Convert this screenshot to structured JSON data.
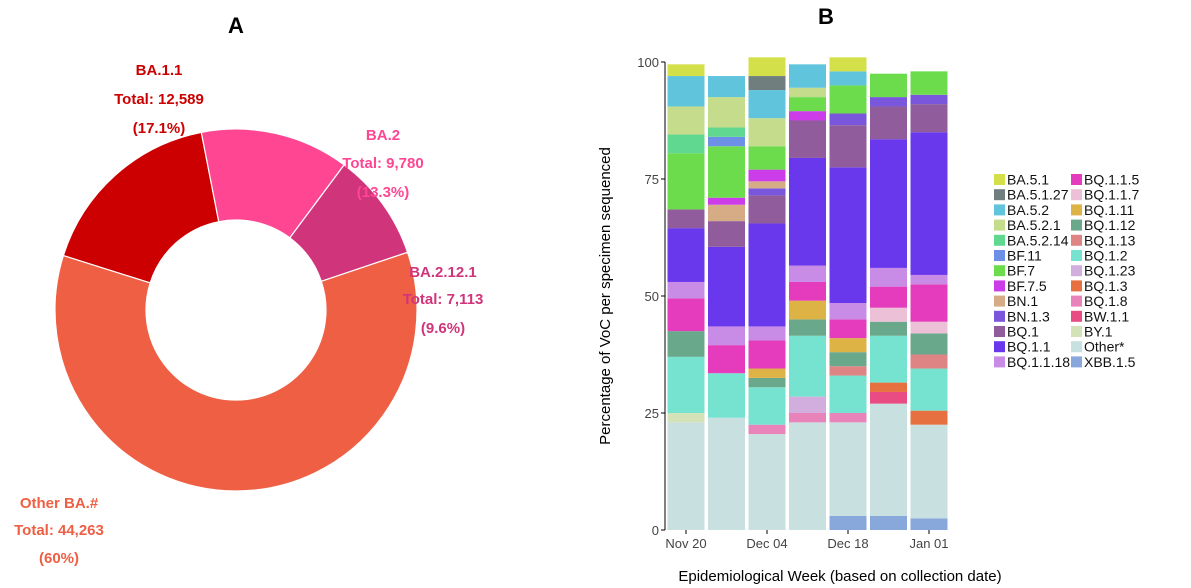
{
  "chart_data": [
    {
      "panel_label": "A",
      "type": "pie",
      "hole": true,
      "slices": [
        {
          "name": "BA.1.1",
          "total_text": "Total: 12,589",
          "pct_text": "(17.1%)",
          "value": 12589,
          "color": "#cc0000"
        },
        {
          "name": "BA.2",
          "total_text": "Total: 9,780",
          "pct_text": "(13.3%)",
          "value": 9780,
          "color": "#ff4693"
        },
        {
          "name": "BA.2.12.1",
          "total_text": "Total: 7,113",
          "pct_text": "(9.6%)",
          "value": 7113,
          "color": "#d0357c"
        },
        {
          "name": "Other BA.#",
          "total_text": "Total: 44,263",
          "pct_text": "(60%)",
          "value": 44263,
          "color": "#ee5f44"
        }
      ]
    },
    {
      "panel_label": "B",
      "type": "bar",
      "stacked": true,
      "xlabel": "Epidemiological Week (based on collection date)",
      "ylabel": "Percentage of VoC per specimen sequenced",
      "ylim": [
        0,
        100
      ],
      "yticks": [
        "0",
        "25",
        "50",
        "75",
        "100"
      ],
      "x_tick_labels": [
        "Nov 20",
        "Dec 04",
        "Dec 18",
        "Jan 01"
      ],
      "x_tick_positions": [
        0,
        2,
        4,
        6
      ],
      "n_bars": 7,
      "legend_placement": "right",
      "series": [
        {
          "name": "BA.5.1",
          "color": "#d4e04a",
          "values": [
            2.5,
            0,
            4,
            0,
            3,
            0,
            0
          ]
        },
        {
          "name": "BA.5.1.27",
          "color": "#707e7e",
          "values": [
            0,
            0,
            3,
            0,
            0,
            0,
            0
          ]
        },
        {
          "name": "BA.5.2",
          "color": "#60c4dc",
          "values": [
            6.5,
            4.5,
            6,
            5,
            3,
            0,
            0
          ]
        },
        {
          "name": "BA.5.2.1",
          "color": "#c4dc8c",
          "values": [
            6,
            6.5,
            6,
            2,
            0,
            0,
            0
          ]
        },
        {
          "name": "BA.5.2.14",
          "color": "#60d890",
          "values": [
            4,
            2,
            0,
            0,
            0,
            0,
            0
          ]
        },
        {
          "name": "BF.11",
          "color": "#6d8fe6",
          "values": [
            0,
            2,
            0,
            0,
            0,
            0,
            0
          ]
        },
        {
          "name": "BF.7",
          "color": "#6cdc4c",
          "values": [
            12,
            11,
            5,
            3,
            6,
            5,
            5
          ]
        },
        {
          "name": "BF.7.5",
          "color": "#cc3ce8",
          "values": [
            0,
            1.5,
            2.5,
            2,
            0,
            0,
            0
          ]
        },
        {
          "name": "BN.1",
          "color": "#d6ac86",
          "values": [
            0,
            3.5,
            1.5,
            0,
            0,
            0,
            0
          ]
        },
        {
          "name": "BN.1.3",
          "color": "#7a56dc",
          "values": [
            0,
            0,
            1.5,
            0,
            2.5,
            2,
            2
          ]
        },
        {
          "name": "BQ.1",
          "color": "#905c9c",
          "values": [
            4,
            5.5,
            6,
            8,
            9,
            7,
            6
          ]
        },
        {
          "name": "BQ.1.1",
          "color": "#6a38ec",
          "values": [
            11.5,
            17,
            22,
            23,
            29,
            27.5,
            30.5
          ]
        },
        {
          "name": "BQ.1.1.18",
          "color": "#c88ce6",
          "values": [
            3.5,
            4,
            3,
            3.5,
            3.5,
            4,
            2
          ]
        },
        {
          "name": "BQ.1.1.5",
          "color": "#e43cbc",
          "values": [
            7,
            6,
            6,
            4,
            4,
            4.5,
            8
          ]
        },
        {
          "name": "BQ.1.1.7",
          "color": "#ecc0d6",
          "values": [
            0,
            0,
            0,
            0,
            0,
            3,
            2.5
          ]
        },
        {
          "name": "BQ.1.11",
          "color": "#ddb346",
          "values": [
            0,
            0,
            2,
            4,
            3,
            0,
            0
          ]
        },
        {
          "name": "BQ.1.12",
          "color": "#6aa88c",
          "values": [
            5.5,
            0,
            2,
            3.5,
            3,
            3,
            4.5
          ]
        },
        {
          "name": "BQ.1.13",
          "color": "#de8484",
          "values": [
            0,
            0,
            0,
            0,
            2,
            0,
            3
          ]
        },
        {
          "name": "BQ.1.2",
          "color": "#76e2d0",
          "values": [
            12,
            9.5,
            8,
            13,
            8,
            10,
            9
          ]
        },
        {
          "name": "BQ.1.23",
          "color": "#d2aedf",
          "values": [
            0,
            0,
            0,
            3.5,
            0,
            0,
            0
          ]
        },
        {
          "name": "BQ.1.3",
          "color": "#e67040",
          "values": [
            0,
            0,
            0,
            0,
            0,
            2,
            3
          ]
        },
        {
          "name": "BQ.1.8",
          "color": "#e884ba",
          "values": [
            0,
            0,
            2,
            2,
            2,
            0,
            0
          ]
        },
        {
          "name": "BW.1.1",
          "color": "#e84c82",
          "values": [
            0,
            0,
            0,
            0,
            0,
            2.5,
            0
          ]
        },
        {
          "name": "BY.1",
          "color": "#d4e2b8",
          "values": [
            2,
            0,
            0,
            0,
            0,
            0,
            0
          ]
        },
        {
          "name": "Other*",
          "color": "#c8e0e0",
          "values": [
            23,
            24,
            20.5,
            23,
            20,
            24,
            20
          ]
        },
        {
          "name": "XBB.1.5",
          "color": "#88a8dc",
          "values": [
            0,
            0,
            0,
            0,
            3,
            3,
            2.5
          ]
        }
      ]
    }
  ]
}
